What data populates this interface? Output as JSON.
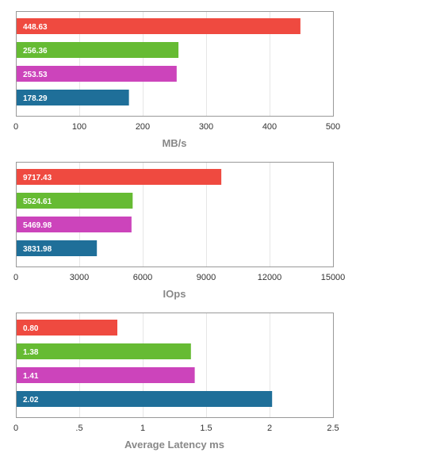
{
  "chart_data": [
    {
      "type": "bar",
      "orientation": "horizontal",
      "values": [
        448.63,
        256.36,
        253.53,
        178.29
      ],
      "labels": [
        "448.63",
        "256.36",
        "253.53",
        "178.29"
      ],
      "colors": [
        "#ef4a40",
        "#66bb33",
        "#cc44bb",
        "#1f6f99"
      ],
      "xlabel": "MB/s",
      "xlim": [
        0,
        500
      ],
      "xticks": [
        0,
        100,
        200,
        300,
        400,
        500
      ],
      "xtick_labels": [
        "0",
        "100",
        "200",
        "300",
        "400",
        "500"
      ],
      "grid": "vertical"
    },
    {
      "type": "bar",
      "orientation": "horizontal",
      "values": [
        9717.43,
        5524.61,
        5469.98,
        3831.98
      ],
      "labels": [
        "9717.43",
        "5524.61",
        "5469.98",
        "3831.98"
      ],
      "colors": [
        "#ef4a40",
        "#66bb33",
        "#cc44bb",
        "#1f6f99"
      ],
      "xlabel": "IOps",
      "xlim": [
        0,
        15000
      ],
      "xticks": [
        0,
        3000,
        6000,
        9000,
        12000,
        15000
      ],
      "xtick_labels": [
        "0",
        "3000",
        "6000",
        "9000",
        "12000",
        "15000"
      ],
      "grid": "vertical"
    },
    {
      "type": "bar",
      "orientation": "horizontal",
      "values": [
        0.8,
        1.38,
        1.41,
        2.02
      ],
      "labels": [
        "0.80",
        "1.38",
        "1.41",
        "2.02"
      ],
      "colors": [
        "#ef4a40",
        "#66bb33",
        "#cc44bb",
        "#1f6f99"
      ],
      "xlabel": "Average Latency ms",
      "xlim": [
        0,
        2.5
      ],
      "xticks": [
        0,
        0.5,
        1,
        1.5,
        2,
        2.5
      ],
      "xtick_labels": [
        "0",
        ".5",
        "1",
        "1.5",
        "2",
        "2.5"
      ],
      "grid": "vertical"
    }
  ]
}
